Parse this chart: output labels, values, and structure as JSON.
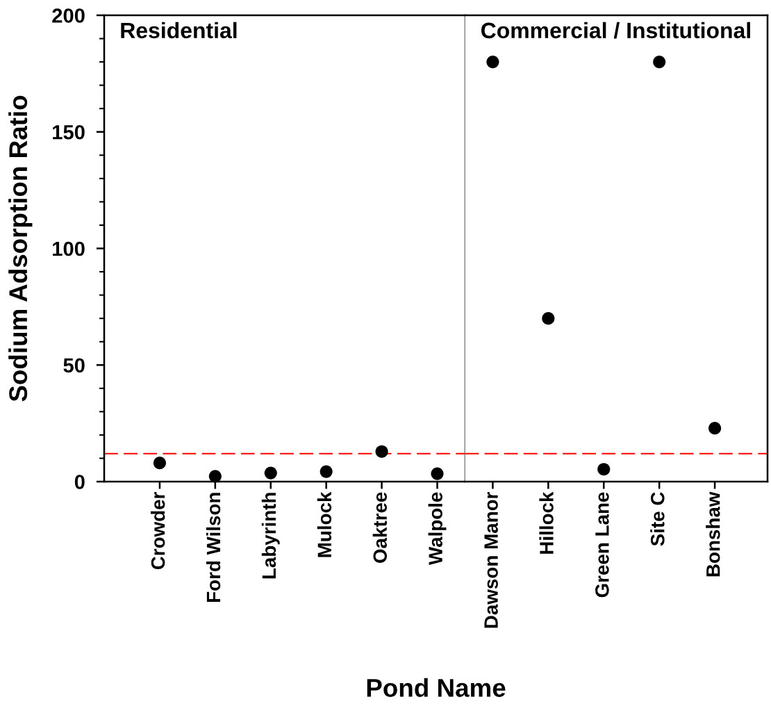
{
  "chart_data": [
    {
      "type": "scatter",
      "title": "Residential",
      "xlabel": "Pond Name",
      "ylabel": "Sodium Adsorption Ratio",
      "categories": [
        "Crowder",
        "Ford Wilson",
        "Labyrinth",
        "Mulock",
        "Oaktree",
        "Walpole"
      ],
      "values": [
        8,
        2.3,
        3.7,
        4.3,
        12.9,
        3.4
      ],
      "color": "#000000",
      "marker": "circle",
      "ylim": [
        0,
        200
      ],
      "yticks": [
        0,
        {
          "value": 10,
          "label": null
        },
        {
          "value": 20,
          "label": null
        },
        {
          "value": 30,
          "label": null
        },
        {
          "value": 40,
          "label": null
        },
        50,
        {
          "value": 60,
          "label": null
        },
        {
          "value": 70,
          "label": null
        },
        {
          "value": 80,
          "label": null
        },
        {
          "value": 90,
          "label": null
        },
        100,
        {
          "value": 110,
          "label": null
        },
        {
          "value": 120,
          "label": null
        },
        {
          "value": 130,
          "label": null
        },
        {
          "value": 140,
          "label": null
        },
        150,
        {
          "value": 160,
          "label": null
        },
        {
          "value": 170,
          "label": null
        },
        {
          "value": 180,
          "label": null
        },
        {
          "value": 190,
          "label": null
        },
        200
      ],
      "ref_lines": [
        {
          "axis": "y",
          "value": 12,
          "color": "#ff0000",
          "line_style": "dashed"
        }
      ]
    },
    {
      "type": "scatter",
      "title": "Commercial / Institutional",
      "categories": [
        "Dawson Manor",
        "Hillock",
        "Green Lane",
        "Site C",
        "Bonshaw"
      ],
      "values": [
        180,
        70,
        5.3,
        180,
        22.9
      ],
      "color": "#000000",
      "marker": "circle",
      "ylim": [
        0,
        200
      ],
      "tick_labels": "x",
      "ref_lines": [
        {
          "axis": "y",
          "value": 12,
          "color": "#ff0000",
          "line_style": "dashed"
        }
      ]
    }
  ]
}
